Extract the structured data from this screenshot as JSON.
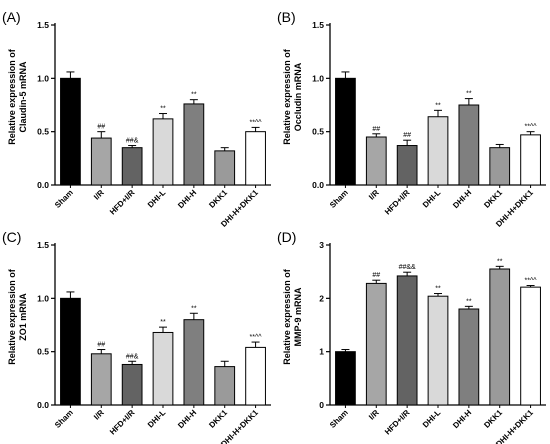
{
  "chart_data": [
    {
      "type": "bar",
      "panel": "(A)",
      "ylabel_lines": [
        "Relative expression of",
        "Claudin-5 mRNA"
      ],
      "categories": [
        "Sham",
        "I/R",
        "HFD+I/R",
        "DHI-L",
        "DHI-H",
        "DKK1",
        "DHI-H+DKK1"
      ],
      "values": [
        1.0,
        0.44,
        0.35,
        0.62,
        0.76,
        0.32,
        0.5
      ],
      "errors": [
        0.06,
        0.06,
        0.02,
        0.05,
        0.04,
        0.03,
        0.04
      ],
      "annotations": [
        "",
        "##",
        "##&",
        "**",
        "**",
        "",
        "**^^"
      ],
      "colors": [
        "#000000",
        "#a6a6a6",
        "#636363",
        "#d9d9d9",
        "#7f7f7f",
        "#9a9a9a",
        "#ffffff"
      ],
      "ylim": [
        0,
        1.5
      ],
      "yticks": [
        "0.0",
        "0.5",
        "1.0",
        "1.5"
      ]
    },
    {
      "type": "bar",
      "panel": "(B)",
      "ylabel_lines": [
        "Relative expression of",
        "Occludin mRNA"
      ],
      "categories": [
        "Sham",
        "I/R",
        "HFD+I/R",
        "DHI-L",
        "DHI-H",
        "DKK1",
        "DHI-H+DKK1"
      ],
      "values": [
        1.0,
        0.45,
        0.37,
        0.64,
        0.75,
        0.35,
        0.47
      ],
      "errors": [
        0.06,
        0.03,
        0.05,
        0.06,
        0.06,
        0.03,
        0.03
      ],
      "annotations": [
        "",
        "##",
        "##",
        "**",
        "**",
        "",
        "**^^"
      ],
      "colors": [
        "#000000",
        "#a6a6a6",
        "#636363",
        "#d9d9d9",
        "#7f7f7f",
        "#9a9a9a",
        "#ffffff"
      ],
      "ylim": [
        0,
        1.5
      ],
      "yticks": [
        "0.0",
        "0.5",
        "1.0",
        "1.5"
      ]
    },
    {
      "type": "bar",
      "panel": "(C)",
      "ylabel_lines": [
        "Relative expression of",
        "ZO1 mRNA"
      ],
      "categories": [
        "Sham",
        "I/R",
        "HFD+I/R",
        "DHI-L",
        "DHI-H",
        "DKK1",
        "DHI-H+DKK1"
      ],
      "values": [
        1.0,
        0.48,
        0.38,
        0.68,
        0.8,
        0.36,
        0.54
      ],
      "errors": [
        0.06,
        0.04,
        0.03,
        0.05,
        0.06,
        0.05,
        0.05
      ],
      "annotations": [
        "",
        "##",
        "##&",
        "**",
        "**",
        "",
        "**^^"
      ],
      "colors": [
        "#000000",
        "#a6a6a6",
        "#636363",
        "#d9d9d9",
        "#7f7f7f",
        "#9a9a9a",
        "#ffffff"
      ],
      "ylim": [
        0,
        1.5
      ],
      "yticks": [
        "0.0",
        "0.5",
        "1.0",
        "1.5"
      ]
    },
    {
      "type": "bar",
      "panel": "(D)",
      "ylabel_lines": [
        "Relative expression of",
        "MMP-9 mRNA"
      ],
      "categories": [
        "Sham",
        "I/R",
        "HFD+I/R",
        "DHI-L",
        "DHI-H",
        "DKK1",
        "DHI-H+DKK1"
      ],
      "values": [
        1.0,
        2.28,
        2.42,
        2.04,
        1.8,
        2.55,
        2.21
      ],
      "errors": [
        0.04,
        0.06,
        0.07,
        0.05,
        0.05,
        0.05,
        0.03
      ],
      "annotations": [
        "",
        "##",
        "##&&",
        "**",
        "**",
        "**",
        "**^^"
      ],
      "colors": [
        "#000000",
        "#a6a6a6",
        "#636363",
        "#d9d9d9",
        "#7f7f7f",
        "#9a9a9a",
        "#ffffff"
      ],
      "ylim": [
        0,
        3
      ],
      "yticks": [
        "0",
        "1",
        "2",
        "3"
      ]
    }
  ]
}
